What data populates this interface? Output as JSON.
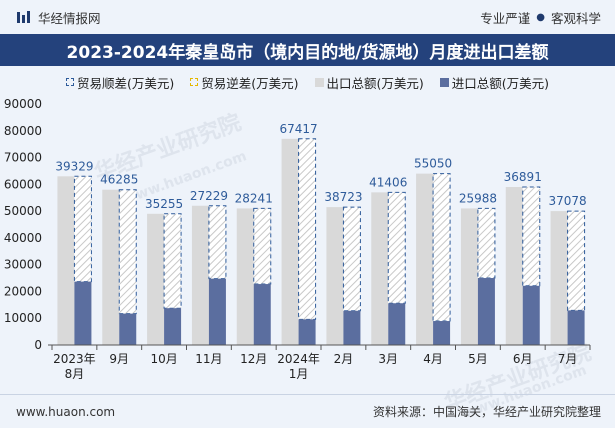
{
  "header": {
    "brand": "华经情报网",
    "slogan_left": "专业严谨",
    "slogan_right": "客观科学"
  },
  "title": "2023-2024年秦皇岛市（境内目的地/货源地）月度进出口差额",
  "legend": {
    "diff": "贸易顺差(万美元)",
    "rev": "贸易逆差(万美元)",
    "exp": "出口总额(万美元)",
    "imp": "进口总额(万美元)"
  },
  "watermark": {
    "line1": "华经产业研究院",
    "line2": "www.huaon.com"
  },
  "footer": {
    "url": "www.huaon.com",
    "source": "资料来源：中国海关，华经产业研究院整理"
  },
  "colors": {
    "export": "#d9d9d9",
    "import": "#5b6e9f",
    "surplus_border": "#2e5b9a",
    "deficit_border": "#e6b800",
    "title_bg": "#24427c"
  },
  "chart_data": {
    "type": "bar",
    "title": "2023-2024年秦皇岛市（境内目的地/货源地）月度进出口差额",
    "categories": [
      [
        "2023年",
        "8月"
      ],
      [
        "9月"
      ],
      [
        "10月"
      ],
      [
        "11月"
      ],
      [
        "12月"
      ],
      [
        "2024年",
        "1月"
      ],
      [
        "2月"
      ],
      [
        "3月"
      ],
      [
        "4月"
      ],
      [
        "5月"
      ],
      [
        "6月"
      ],
      [
        "7月"
      ]
    ],
    "ylim": [
      0,
      90000
    ],
    "yticks": [
      0,
      10000,
      20000,
      30000,
      40000,
      50000,
      60000,
      70000,
      80000,
      90000
    ],
    "series": [
      {
        "name": "出口总额(万美元)",
        "values": [
          63000,
          58000,
          49000,
          52000,
          51000,
          77000,
          51500,
          57000,
          64000,
          51000,
          59000,
          50000
        ]
      },
      {
        "name": "进口总额(万美元)",
        "values": [
          23671,
          11715,
          13745,
          24771,
          22759,
          9583,
          12777,
          15594,
          8950,
          25012,
          22109,
          12922
        ]
      },
      {
        "name": "贸易顺差(万美元)",
        "values": [
          39329,
          46285,
          35255,
          27229,
          28241,
          67417,
          38723,
          41406,
          55050,
          25988,
          36891,
          37078
        ]
      }
    ]
  }
}
